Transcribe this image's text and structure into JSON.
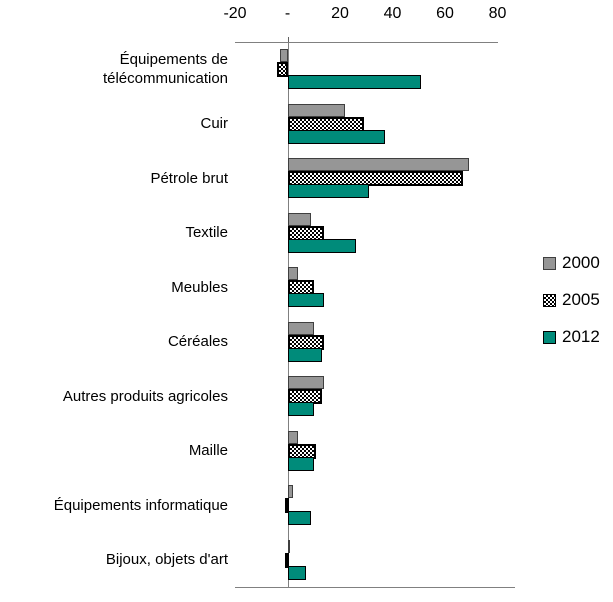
{
  "chart_data": {
    "type": "bar",
    "orientation": "horizontal",
    "title": "",
    "xlabel": "",
    "ylabel": "",
    "categories": [
      "Équipements de télécommunication",
      "Cuir",
      "Pétrole brut",
      "Textile",
      "Meubles",
      "Céréales",
      "Autres produits agricoles",
      "Maille",
      "Équipements informatique",
      "Bijoux, objets d'art"
    ],
    "series": [
      {
        "name": "2000",
        "color": "#969696",
        "pattern": "solid",
        "values": [
          -3,
          22,
          69,
          9,
          4,
          10,
          14,
          4,
          2,
          0.5
        ]
      },
      {
        "name": "2005",
        "color": "#000000",
        "pattern": "checker-hatch-on-white",
        "values": [
          -4,
          29,
          67,
          14,
          10,
          14,
          13,
          11,
          -1,
          -1
        ]
      },
      {
        "name": "2012",
        "color": "#008B7A",
        "pattern": "solid",
        "values": [
          51,
          37,
          31,
          26,
          14,
          13,
          10,
          10,
          9,
          7
        ]
      }
    ],
    "x_axis": {
      "position": "top",
      "min": -20,
      "max": 80,
      "tick_values": [
        -20,
        0,
        20,
        40,
        60,
        80
      ],
      "tick_labels": [
        "-20",
        "-",
        "20",
        "40",
        "60",
        "80"
      ]
    },
    "grid": "off",
    "legend": {
      "position": "right",
      "entries": [
        "2000",
        "2005",
        "2012"
      ]
    }
  }
}
